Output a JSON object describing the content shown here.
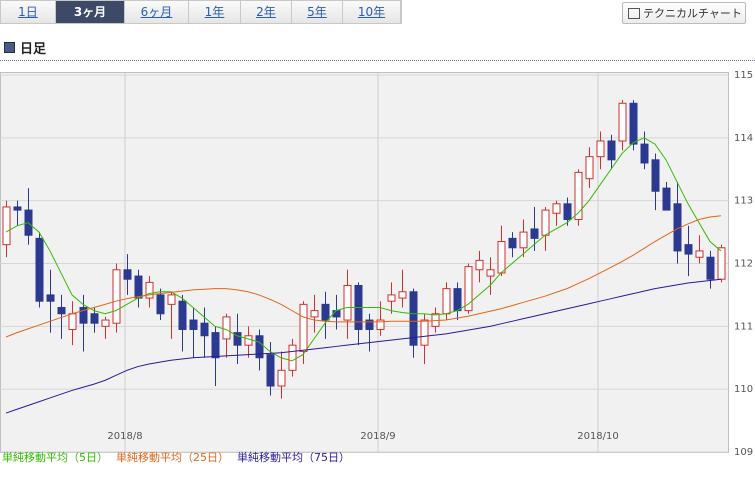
{
  "tabs": [
    "1日",
    "3ヶ月",
    "6ヶ月",
    "1年",
    "2年",
    "5年",
    "10年"
  ],
  "selected_tab": 1,
  "button": "テクニカルチャート",
  "heading": "日足",
  "chart_data": {
    "type": "candlestick",
    "up_color": "#d03030",
    "down_color": "#2b3990",
    "ylim": [
      109,
      115
    ],
    "yticks": [
      109,
      110,
      111,
      112,
      113,
      114,
      115
    ],
    "grid": true,
    "categories": [
      null,
      null,
      null,
      null,
      null,
      null,
      null,
      null,
      null,
      null,
      null,
      "2018/8",
      null,
      null,
      null,
      null,
      null,
      null,
      null,
      null,
      null,
      null,
      null,
      null,
      null,
      null,
      null,
      null,
      null,
      null,
      null,
      null,
      null,
      null,
      "2018/9",
      null,
      null,
      null,
      null,
      null,
      null,
      null,
      null,
      null,
      null,
      null,
      null,
      null,
      null,
      null,
      null,
      null,
      null,
      null,
      "2018/10",
      null,
      null,
      null,
      null,
      null,
      null,
      null,
      null,
      null,
      null,
      null
    ],
    "open": [
      112.3,
      112.9,
      112.85,
      112.4,
      111.5,
      111.3,
      110.95,
      111.3,
      111.2,
      111.0,
      111.05,
      111.9,
      111.8,
      111.45,
      111.5,
      111.35,
      111.4,
      111.1,
      111.05,
      110.9,
      110.8,
      110.9,
      110.7,
      110.85,
      110.55,
      110.05,
      110.3,
      110.6,
      111.15,
      111.35,
      111.25,
      111.1,
      111.65,
      111.1,
      110.95,
      111.4,
      111.45,
      111.55,
      110.7,
      111.0,
      111.2,
      111.6,
      111.25,
      111.9,
      111.8,
      111.85,
      112.4,
      112.25,
      112.55,
      112.45,
      112.8,
      112.95,
      112.7,
      113.35,
      113.7,
      113.95,
      113.95,
      114.55,
      113.9,
      113.65,
      113.2,
      112.95,
      112.3,
      112.1,
      112.1,
      111.75
    ],
    "high": [
      113.0,
      113.0,
      113.2,
      112.5,
      111.9,
      111.5,
      111.4,
      111.5,
      111.3,
      111.15,
      112.0,
      112.15,
      111.9,
      111.8,
      111.6,
      111.55,
      111.5,
      111.3,
      111.3,
      111.0,
      111.2,
      111.2,
      111.0,
      110.95,
      110.75,
      110.6,
      110.8,
      111.4,
      111.5,
      111.55,
      111.5,
      111.9,
      111.7,
      111.2,
      111.4,
      111.7,
      111.9,
      111.6,
      111.2,
      111.3,
      111.7,
      111.7,
      112.0,
      112.2,
      112.1,
      112.6,
      112.5,
      112.7,
      112.9,
      112.9,
      113.0,
      113.05,
      113.5,
      113.85,
      114.1,
      114.05,
      114.6,
      114.6,
      114.1,
      113.75,
      113.3,
      113.3,
      112.6,
      112.45,
      112.2,
      112.3
    ],
    "low": [
      112.1,
      112.6,
      112.3,
      111.3,
      110.9,
      110.8,
      110.7,
      110.6,
      110.9,
      110.8,
      110.9,
      111.5,
      111.3,
      111.3,
      111.1,
      110.8,
      110.6,
      110.5,
      110.5,
      110.05,
      110.5,
      110.4,
      110.5,
      110.3,
      109.9,
      109.85,
      110.2,
      110.4,
      110.9,
      110.8,
      110.95,
      110.8,
      110.7,
      110.6,
      110.85,
      111.2,
      111.3,
      110.5,
      110.4,
      110.9,
      111.1,
      111.1,
      111.2,
      111.7,
      111.5,
      111.8,
      112.1,
      112.1,
      112.2,
      112.2,
      112.6,
      112.6,
      112.6,
      113.2,
      113.5,
      113.5,
      113.8,
      113.8,
      113.5,
      112.85,
      112.85,
      112.0,
      111.8,
      112.0,
      111.6,
      111.7
    ],
    "close": [
      112.9,
      112.85,
      112.45,
      111.4,
      111.4,
      111.2,
      111.2,
      111.05,
      111.05,
      111.1,
      111.9,
      111.75,
      111.45,
      111.7,
      111.2,
      111.5,
      110.95,
      110.95,
      110.85,
      110.5,
      111.15,
      110.7,
      110.85,
      110.5,
      110.05,
      110.3,
      110.7,
      111.35,
      111.25,
      111.1,
      111.15,
      111.65,
      110.95,
      110.95,
      111.1,
      111.5,
      111.55,
      110.7,
      111.1,
      111.2,
      111.6,
      111.25,
      111.95,
      112.05,
      111.9,
      112.35,
      112.25,
      112.5,
      112.4,
      112.85,
      112.95,
      112.7,
      113.45,
      113.7,
      113.95,
      113.65,
      114.55,
      113.9,
      113.6,
      113.15,
      112.85,
      112.2,
      112.15,
      112.2,
      111.75,
      112.25
    ],
    "series": [
      {
        "name": "単純移動平均（5日）",
        "color": "#33bb00",
        "values": [
          112.5,
          112.6,
          112.65,
          112.5,
          112.2,
          111.85,
          111.5,
          111.35,
          111.25,
          111.2,
          111.25,
          111.35,
          111.45,
          111.52,
          111.55,
          111.55,
          111.45,
          111.3,
          111.15,
          111.0,
          110.95,
          110.85,
          110.8,
          110.75,
          110.6,
          110.5,
          110.45,
          110.55,
          110.8,
          111.05,
          111.25,
          111.3,
          111.3,
          111.3,
          111.3,
          111.25,
          111.22,
          111.2,
          111.2,
          111.18,
          111.2,
          111.25,
          111.35,
          111.5,
          111.65,
          111.85,
          112.0,
          112.15,
          112.3,
          112.45,
          112.55,
          112.65,
          112.8,
          113.0,
          113.25,
          113.5,
          113.75,
          113.92,
          114.0,
          113.9,
          113.65,
          113.3,
          112.95,
          112.65,
          112.35,
          112.2
        ]
      },
      {
        "name": "単純移動平均（25日）",
        "color": "#e0661a",
        "values": [
          110.83,
          110.9,
          110.96,
          111.02,
          111.08,
          111.14,
          111.2,
          111.25,
          111.3,
          111.35,
          111.4,
          111.44,
          111.47,
          111.5,
          111.52,
          111.54,
          111.56,
          111.58,
          111.59,
          111.6,
          111.6,
          111.58,
          111.55,
          111.5,
          111.43,
          111.35,
          111.25,
          111.15,
          111.1,
          111.08,
          111.07,
          111.07,
          111.07,
          111.07,
          111.07,
          111.08,
          111.08,
          111.08,
          111.08,
          111.09,
          111.1,
          111.13,
          111.16,
          111.2,
          111.24,
          111.28,
          111.33,
          111.38,
          111.43,
          111.48,
          111.54,
          111.6,
          111.68,
          111.76,
          111.85,
          111.94,
          112.03,
          112.13,
          112.24,
          112.35,
          112.45,
          112.55,
          112.63,
          112.7,
          112.74,
          112.76
        ]
      },
      {
        "name": "単純移動平均（75日）",
        "color": "#2a1a99",
        "values": [
          109.62,
          109.68,
          109.74,
          109.8,
          109.86,
          109.92,
          109.98,
          110.03,
          110.08,
          110.14,
          110.22,
          110.3,
          110.36,
          110.4,
          110.43,
          110.46,
          110.48,
          110.5,
          110.51,
          110.52,
          110.53,
          110.54,
          110.55,
          110.56,
          110.57,
          110.58,
          110.6,
          110.62,
          110.64,
          110.66,
          110.68,
          110.7,
          110.72,
          110.74,
          110.76,
          110.78,
          110.8,
          110.82,
          110.84,
          110.86,
          110.88,
          110.91,
          110.94,
          110.97,
          111.0,
          111.04,
          111.08,
          111.12,
          111.16,
          111.2,
          111.24,
          111.28,
          111.32,
          111.36,
          111.4,
          111.44,
          111.48,
          111.52,
          111.56,
          111.6,
          111.63,
          111.66,
          111.69,
          111.71,
          111.73,
          111.75
        ]
      }
    ]
  }
}
